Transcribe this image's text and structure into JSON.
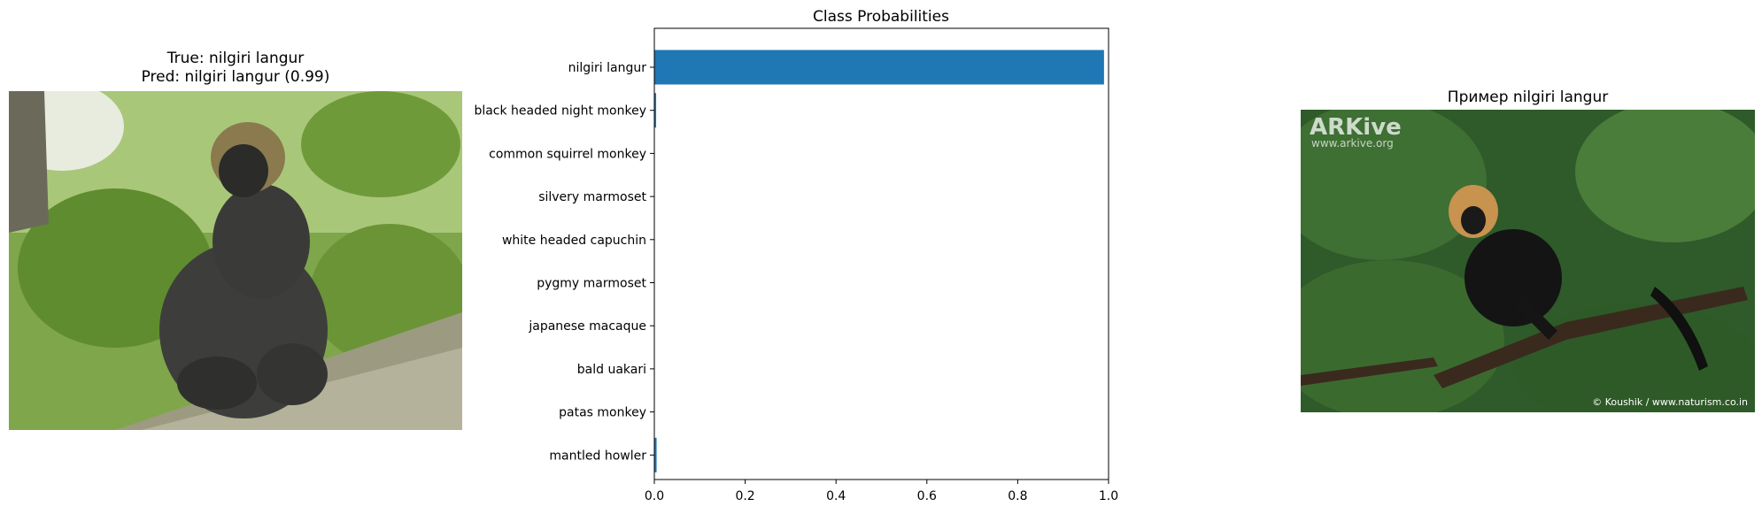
{
  "left_panel": {
    "title_line1": "True: nilgiri langur",
    "title_line2": "Pred: nilgiri langur (0.99)"
  },
  "right_panel": {
    "title": "Пример nilgiri langur",
    "watermark_logo": "ARKive",
    "watermark_url": "www.arkive.org",
    "credit": "© Koushik / www.naturism.co.in"
  },
  "chart_data": {
    "type": "bar",
    "orientation": "horizontal",
    "title": "Class Probabilities",
    "categories": [
      "nilgiri langur",
      "black headed night monkey",
      "common squirrel monkey",
      "silvery marmoset",
      "white headed capuchin",
      "pygmy marmoset",
      "japanese macaque",
      "bald uakari",
      "patas monkey",
      "mantled howler"
    ],
    "values": [
      0.99,
      0.004,
      0.001,
      0.001,
      0.001,
      0.001,
      0.001,
      0.001,
      0.001,
      0.005
    ],
    "xlim": [
      0,
      1.0
    ],
    "xticks": [
      "0.0",
      "0.2",
      "0.4",
      "0.6",
      "0.8",
      "1.0"
    ],
    "xlabel": "",
    "ylabel": "",
    "grid": false,
    "bar_color": "#1f77b4"
  }
}
